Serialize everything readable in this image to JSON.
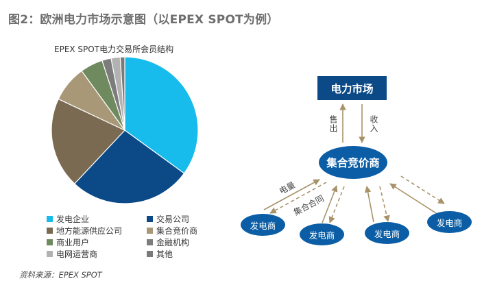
{
  "figure_title": "图2：欧洲电力市场示意图（以EPEX SPOT为例）",
  "source": "资料来源：EPEX SPOT",
  "chart_data": {
    "type": "pie",
    "title": "EPEX SPOT电力交易所会员结构",
    "start_angle_deg": 0,
    "direction": "clockwise",
    "slices": [
      {
        "label": "发电企业",
        "value": 35,
        "color": "#17bbec"
      },
      {
        "label": "交易公司",
        "value": 27,
        "color": "#0b4a86"
      },
      {
        "label": "地方能源供应公司",
        "value": 20,
        "color": "#7a6a52"
      },
      {
        "label": "集合竞价商",
        "value": 8,
        "color": "#a89878"
      },
      {
        "label": "商业用户",
        "value": 5,
        "color": "#6f8a5e"
      },
      {
        "label": "金融机构",
        "value": 2,
        "color": "#7c7c7c"
      },
      {
        "label": "电网运营商",
        "value": 2,
        "color": "#b2b2b2"
      },
      {
        "label": "其他",
        "value": 1,
        "color": "#7a7a7a"
      }
    ]
  },
  "diagram": {
    "market": "电力市场",
    "aggregator": "集合竞价商",
    "sell_label": "售出",
    "buy_label": "收入",
    "power_label": "电量",
    "contract_label": "集合合同",
    "generator_label": "发电商",
    "arrow_color": "#a8926a"
  }
}
